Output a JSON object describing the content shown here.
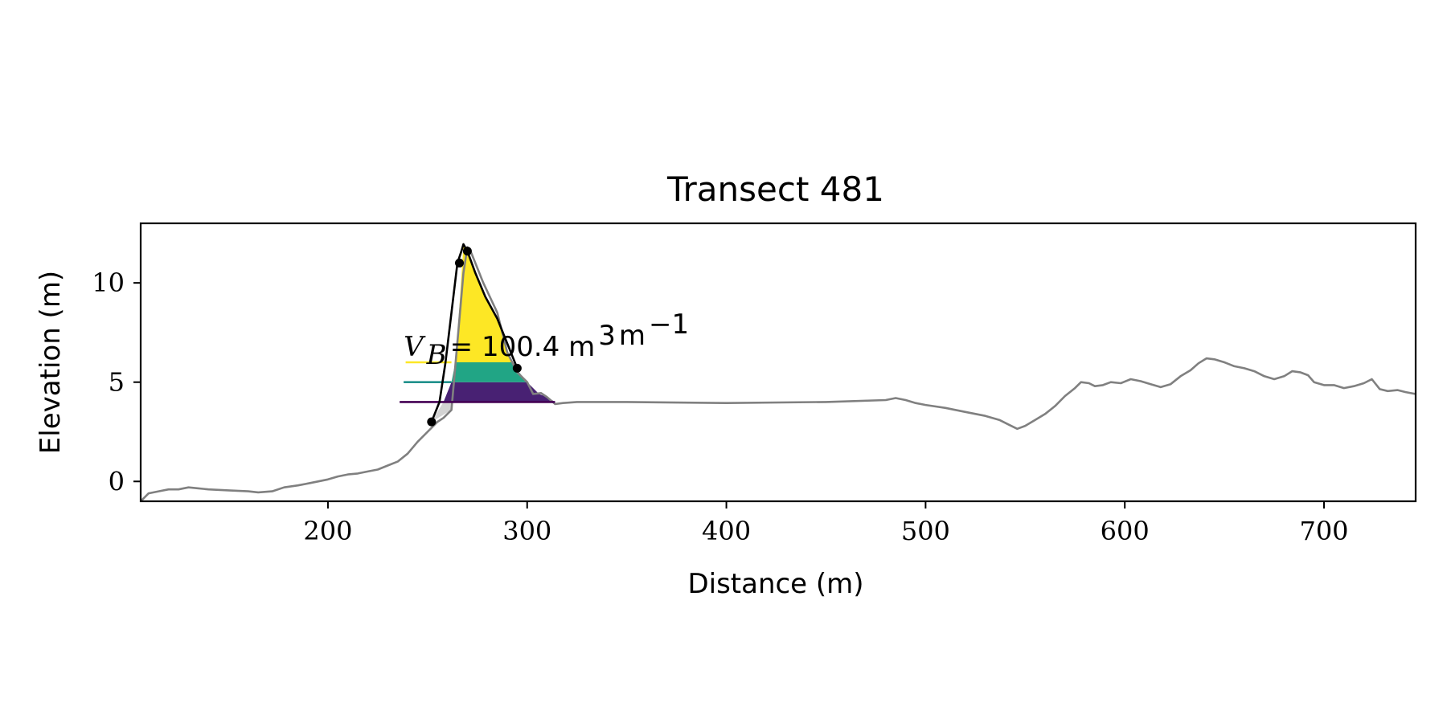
{
  "chart_data": {
    "type": "area",
    "title": "Transect 481",
    "xlabel": "Distance (m)",
    "ylabel": "Elevation (m)",
    "xlim": [
      106,
      746
    ],
    "ylim": [
      -1,
      13
    ],
    "xticks": [
      200,
      300,
      400,
      500,
      600,
      700
    ],
    "yticks": [
      0,
      5,
      10
    ],
    "grid": false,
    "colors": {
      "ground": "#808080",
      "profile": "#000000",
      "band_top": "#fde725",
      "band_mid": "#21a585",
      "band_low": "#482173",
      "under_fill": "#d3d3d3",
      "level_top": "#fde725",
      "level_mid": "#21918c",
      "level_low": "#440154"
    },
    "ground_profile": [
      [
        106,
        -1.0
      ],
      [
        110,
        -0.6
      ],
      [
        115,
        -0.5
      ],
      [
        120,
        -0.4
      ],
      [
        125,
        -0.4
      ],
      [
        130,
        -0.3
      ],
      [
        135,
        -0.35
      ],
      [
        140,
        -0.4
      ],
      [
        150,
        -0.45
      ],
      [
        160,
        -0.5
      ],
      [
        165,
        -0.55
      ],
      [
        172,
        -0.5
      ],
      [
        178,
        -0.3
      ],
      [
        185,
        -0.2
      ],
      [
        190,
        -0.1
      ],
      [
        195,
        0.0
      ],
      [
        200,
        0.1
      ],
      [
        205,
        0.25
      ],
      [
        210,
        0.35
      ],
      [
        215,
        0.4
      ],
      [
        220,
        0.5
      ],
      [
        225,
        0.6
      ],
      [
        230,
        0.8
      ],
      [
        235,
        1.0
      ],
      [
        240,
        1.4
      ],
      [
        245,
        2.0
      ],
      [
        250,
        2.5
      ],
      [
        255,
        3.0
      ],
      [
        258,
        3.2
      ],
      [
        262,
        3.6
      ],
      [
        268,
        10.5
      ],
      [
        270,
        11.8
      ],
      [
        272,
        11.5
      ],
      [
        278,
        10.0
      ],
      [
        285,
        8.5
      ],
      [
        290,
        6.5
      ],
      [
        295,
        5.5
      ],
      [
        300,
        5.0
      ],
      [
        303,
        4.4
      ],
      [
        307,
        4.45
      ],
      [
        310,
        4.25
      ],
      [
        314,
        3.9
      ],
      [
        318,
        3.95
      ],
      [
        325,
        4.0
      ],
      [
        350,
        4.0
      ],
      [
        400,
        3.95
      ],
      [
        450,
        4.0
      ],
      [
        480,
        4.1
      ],
      [
        485,
        4.2
      ],
      [
        490,
        4.1
      ],
      [
        495,
        3.95
      ],
      [
        500,
        3.85
      ],
      [
        510,
        3.7
      ],
      [
        520,
        3.5
      ],
      [
        530,
        3.3
      ],
      [
        537,
        3.1
      ],
      [
        542,
        2.85
      ],
      [
        546,
        2.65
      ],
      [
        550,
        2.8
      ],
      [
        555,
        3.1
      ],
      [
        560,
        3.4
      ],
      [
        565,
        3.8
      ],
      [
        570,
        4.3
      ],
      [
        575,
        4.7
      ],
      [
        578,
        5.0
      ],
      [
        582,
        4.95
      ],
      [
        585,
        4.8
      ],
      [
        589,
        4.85
      ],
      [
        593,
        5.0
      ],
      [
        598,
        4.95
      ],
      [
        603,
        5.15
      ],
      [
        608,
        5.05
      ],
      [
        613,
        4.9
      ],
      [
        618,
        4.75
      ],
      [
        623,
        4.9
      ],
      [
        628,
        5.3
      ],
      [
        633,
        5.6
      ],
      [
        637,
        5.95
      ],
      [
        641,
        6.2
      ],
      [
        645,
        6.15
      ],
      [
        650,
        6.0
      ],
      [
        655,
        5.8
      ],
      [
        660,
        5.7
      ],
      [
        665,
        5.55
      ],
      [
        670,
        5.3
      ],
      [
        675,
        5.15
      ],
      [
        680,
        5.3
      ],
      [
        684,
        5.55
      ],
      [
        688,
        5.5
      ],
      [
        692,
        5.35
      ],
      [
        695,
        5.0
      ],
      [
        700,
        4.85
      ],
      [
        705,
        4.85
      ],
      [
        710,
        4.7
      ],
      [
        715,
        4.8
      ],
      [
        720,
        4.95
      ],
      [
        724,
        5.15
      ],
      [
        728,
        4.65
      ],
      [
        732,
        4.55
      ],
      [
        737,
        4.6
      ],
      [
        741,
        4.5
      ],
      [
        746,
        4.4
      ]
    ],
    "profile_line": [
      [
        252,
        3.0
      ],
      [
        256,
        4.0
      ],
      [
        259,
        6.0
      ],
      [
        262,
        8.5
      ],
      [
        265,
        11.0
      ],
      [
        267,
        11.6
      ],
      [
        268,
        11.95
      ],
      [
        270,
        11.6
      ],
      [
        274,
        10.5
      ],
      [
        279,
        9.3
      ],
      [
        285,
        8.2
      ],
      [
        291,
        6.7
      ],
      [
        295,
        5.7
      ]
    ],
    "profile_points": [
      [
        252,
        3.0
      ],
      [
        266,
        11.0
      ],
      [
        270,
        11.6
      ],
      [
        295,
        5.7
      ]
    ],
    "bands": [
      {
        "key": "band_low",
        "lower": 4.0,
        "upper": 5.0,
        "left": [
          [
            258,
            4.0
          ],
          [
            262,
            5.0
          ]
        ],
        "right": [
          [
            300,
            5.0
          ],
          [
            306,
            4.4
          ],
          [
            310,
            4.25
          ],
          [
            314,
            4.0
          ]
        ]
      },
      {
        "key": "band_mid",
        "lower": 5.0,
        "upper": 6.0,
        "left": [
          [
            262,
            5.0
          ],
          [
            264,
            6.0
          ]
        ],
        "right": [
          [
            292,
            6.0
          ],
          [
            296,
            5.5
          ],
          [
            300,
            5.0
          ]
        ]
      },
      {
        "key": "band_top",
        "lower": 6.0,
        "upper": 11.9,
        "left": [
          [
            264,
            6.0
          ],
          [
            266,
            8.8
          ],
          [
            268,
            11.9
          ]
        ],
        "right": [
          [
            270,
            11.6
          ],
          [
            274,
            10.5
          ],
          [
            279,
            9.3
          ],
          [
            285,
            8.2
          ],
          [
            292,
            6.0
          ]
        ]
      }
    ],
    "under_fill": [
      [
        252,
        3.0
      ],
      [
        262,
        3.6
      ],
      [
        262,
        4.0
      ],
      [
        258,
        4.0
      ]
    ],
    "level_lines": [
      {
        "key": "level_top",
        "y": 6.0,
        "x0": 239,
        "x1": 262
      },
      {
        "key": "level_mid",
        "y": 5.0,
        "x0": 238,
        "x1": 262
      },
      {
        "key": "level_low",
        "y": 4.0,
        "x0": 236,
        "x1": 314
      }
    ],
    "annotation": {
      "var": "V",
      "sub": "B",
      "value": "100.4 m",
      "sup1": "3",
      "unit": "m",
      "sup2": "−1",
      "x": 238,
      "y": 6.0
    }
  }
}
